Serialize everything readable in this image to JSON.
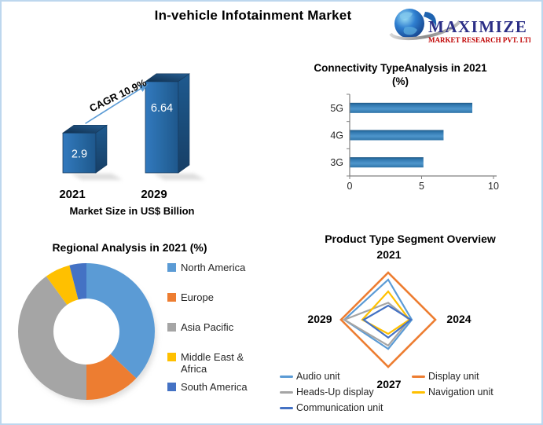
{
  "header": {
    "title": "In-vehicle Infotainment Market",
    "logo": {
      "brand": "MAXIMIZE",
      "tagline": "MARKET RESEARCH PVT. LTD."
    }
  },
  "colors": {
    "frame_border": "#BDD7EE",
    "accent_arrow": "#5B9BD5",
    "logo_brand": "#2B2E86",
    "logo_tagline": "#C00000",
    "palette": {
      "blue": "#5B9BD5",
      "orange": "#ED7D31",
      "gray": "#A5A5A5",
      "yellow": "#FFC000",
      "dark_blue": "#4472C4"
    }
  },
  "chart_data": [
    {
      "id": "market_size",
      "type": "bar",
      "style": "3d",
      "title": "Market Size in US$ Billion",
      "categories": [
        "2021",
        "2029"
      ],
      "values": [
        2.9,
        6.64
      ],
      "value_labels": [
        "2.9",
        "6.64"
      ],
      "annotation": "CAGR 10.9%",
      "bar_color": "#2E75B6"
    },
    {
      "id": "connectivity",
      "type": "bar",
      "orientation": "horizontal",
      "title": "Connectivity TypeAnalysis in 2021",
      "subtitle": "(%)",
      "categories": [
        "5G",
        "4G",
        "3G"
      ],
      "values": [
        8.5,
        6.5,
        5.1
      ],
      "xlim": [
        0,
        10
      ],
      "xticks": [
        "0",
        "5",
        "10"
      ],
      "grid": false,
      "bar_color": "#3E87BC"
    },
    {
      "id": "regional",
      "type": "pie",
      "subtype": "donut",
      "title": "Regional Analysis in 2021 (%)",
      "labels": [
        "North America",
        "Europe",
        "Asia Pacific",
        "Middle East & Africa",
        "South America"
      ],
      "values": [
        37,
        13,
        40,
        6,
        4
      ],
      "colors": [
        "#5B9BD5",
        "#ED7D31",
        "#A5A5A5",
        "#FFC000",
        "#4472C4"
      ],
      "start_angle_deg": 0,
      "clockwise": true,
      "legend_position": "right"
    },
    {
      "id": "product_type",
      "type": "radar",
      "title": "Product Type Segment Overview",
      "axes": [
        "2021",
        "2024",
        "2027",
        "2029"
      ],
      "scale_max": 1,
      "series": [
        {
          "name": "Audio unit",
          "color": "#5B9BD5",
          "values": [
            0.85,
            0.5,
            0.62,
            0.93
          ]
        },
        {
          "name": "Display unit",
          "color": "#ED7D31",
          "values": [
            1.0,
            1.0,
            1.0,
            1.0
          ]
        },
        {
          "name": "Heads-Up display",
          "color": "#A5A5A5",
          "values": [
            0.36,
            0.45,
            0.55,
            0.93
          ]
        },
        {
          "name": "Navigation unit",
          "color": "#FFC000",
          "values": [
            0.6,
            0.45,
            0.3,
            0.55
          ]
        },
        {
          "name": "Communication unit",
          "color": "#4472C4",
          "values": [
            0.3,
            0.48,
            0.38,
            0.52
          ]
        }
      ],
      "legend_position": "bottom"
    }
  ]
}
